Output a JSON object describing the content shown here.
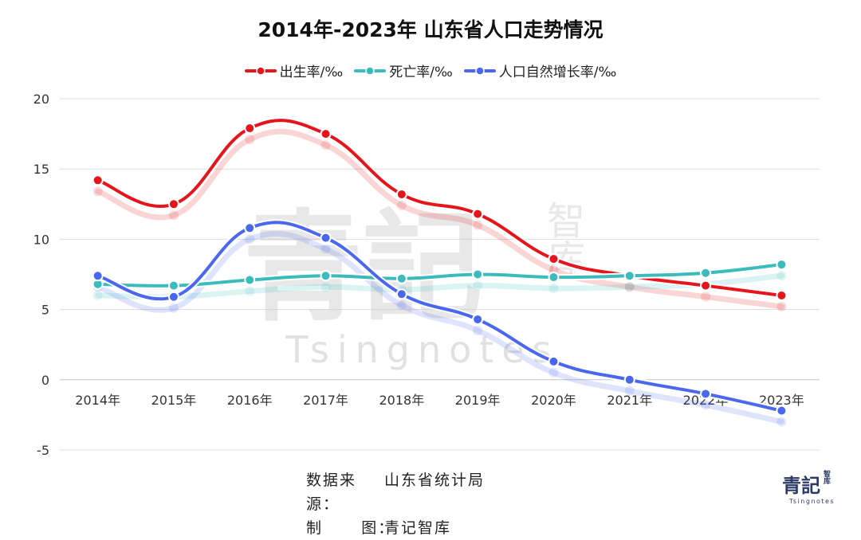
{
  "title": "2014年-2023年 山东省人口走势情况",
  "legend": [
    {
      "label": "出生率/‰",
      "color": "#e5151b"
    },
    {
      "label": "死亡率/‰",
      "color": "#3bbbbb"
    },
    {
      "label": "人口自然增长率/‰",
      "color": "#4a67ef"
    }
  ],
  "chart_data": {
    "type": "line",
    "smooth": true,
    "title": "2014年-2023年 山东省人口走势情况",
    "categories": [
      "2014年",
      "2015年",
      "2016年",
      "2017年",
      "2018年",
      "2019年",
      "2020年",
      "2021年",
      "2022年",
      "2023年"
    ],
    "ylim": [
      -5,
      20
    ],
    "yticks": [
      -5,
      0,
      5,
      10,
      15,
      20
    ],
    "grid": true,
    "legend_position": "top-center",
    "series": [
      {
        "name": "出生率/‰",
        "color": "#e5151b",
        "values": [
          14.2,
          12.5,
          17.9,
          17.5,
          13.2,
          11.8,
          8.6,
          7.4,
          6.7,
          6.0
        ]
      },
      {
        "name": "死亡率/‰",
        "color": "#3bbbbb",
        "values": [
          6.8,
          6.7,
          7.1,
          7.4,
          7.2,
          7.5,
          7.3,
          7.4,
          7.6,
          8.2
        ]
      },
      {
        "name": "人口自然增长率/‰",
        "color": "#4a67ef",
        "values": [
          7.4,
          5.9,
          10.8,
          10.1,
          6.1,
          4.3,
          1.3,
          0.0,
          -1.0,
          -2.2
        ]
      }
    ]
  },
  "footer": {
    "source_key": "数据来源：",
    "source_value": "山东省统计局",
    "maker_key": "制      图：",
    "maker_value": "青记智库"
  },
  "watermark": {
    "main": "青記",
    "side": "智库",
    "en": "Tsingnotes"
  },
  "brand": {
    "main": "青記",
    "side": "智库",
    "en": "Tsingnotes"
  }
}
